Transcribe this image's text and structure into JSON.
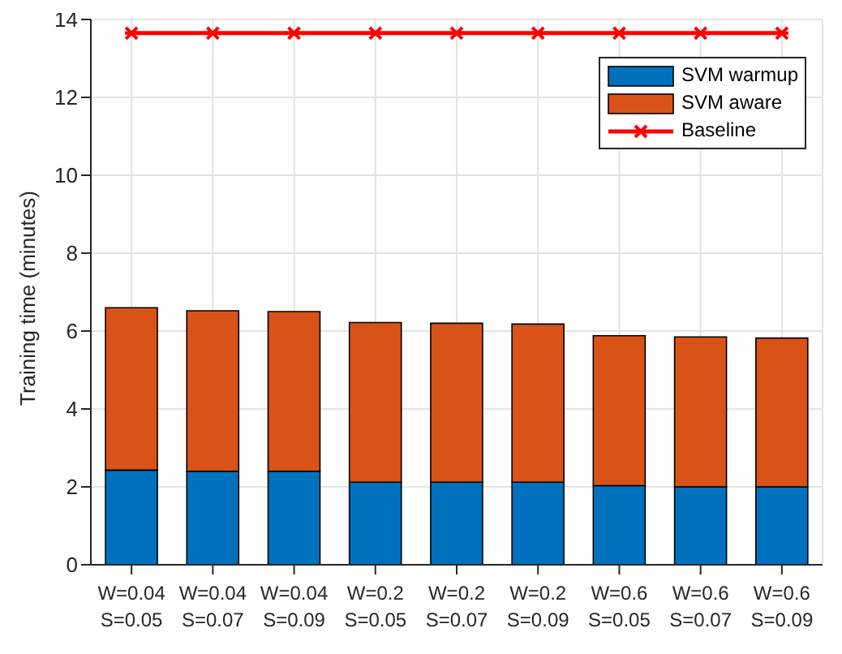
{
  "chart_data": {
    "type": "bar",
    "stacked": true,
    "ylabel": "Training time (minutes)",
    "categories": [
      "W=0.04\nS=0.05",
      "W=0.04\nS=0.07",
      "W=0.04\nS=0.09",
      "W=0.2\nS=0.05",
      "W=0.2\nS=0.07",
      "W=0.2\nS=0.09",
      "W=0.6\nS=0.05",
      "W=0.6\nS=0.07",
      "W=0.6\nS=0.09"
    ],
    "series": [
      {
        "name": "SVM warmup",
        "color": "#0072bd",
        "values": [
          2.43,
          2.4,
          2.4,
          2.12,
          2.12,
          2.12,
          2.03,
          2.0,
          2.0
        ]
      },
      {
        "name": "SVM aware",
        "color": "#d95319",
        "values": [
          4.17,
          4.12,
          4.1,
          4.1,
          4.08,
          4.06,
          3.85,
          3.85,
          3.82
        ]
      },
      {
        "name": "Baseline",
        "type": "line",
        "color": "#ff0000",
        "marker": "cross",
        "values": [
          13.65,
          13.65,
          13.65,
          13.65,
          13.65,
          13.65,
          13.65,
          13.65,
          13.65
        ]
      }
    ],
    "ylim": [
      0,
      14
    ],
    "yticks": [
      0,
      2,
      4,
      6,
      8,
      10,
      12,
      14
    ],
    "grid": true,
    "legend": "top right"
  }
}
